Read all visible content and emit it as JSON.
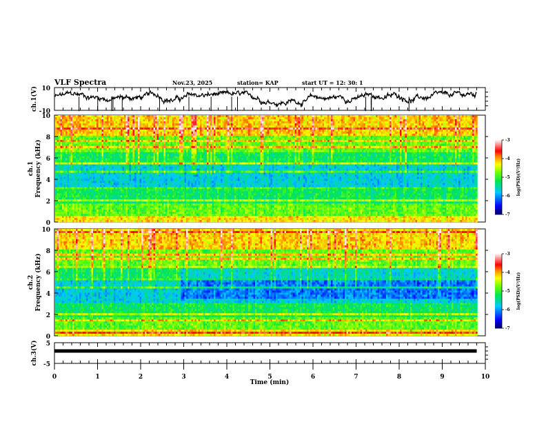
{
  "header": {
    "title": "VLF Spectra",
    "date": "Nov.23, 2025",
    "station": "station= KAP",
    "start": "start  UT =   12: 30: 1"
  },
  "chart_data": [
    {
      "type": "line",
      "name": "ch1-waveform",
      "ylabel": "ch.1(V)",
      "ylim": [
        -10,
        10
      ],
      "yticks": [
        "10",
        "-10"
      ],
      "xlim": [
        0,
        10
      ],
      "x_end": 9.8,
      "series_color": "#000000"
    },
    {
      "type": "heatmap",
      "name": "ch1-spectrogram",
      "ylabel_line1": "ch.1",
      "ylabel_line2": "Frequency (kHz)",
      "ylim": [
        0,
        10
      ],
      "yticks": [
        "0",
        "2",
        "4",
        "6",
        "8",
        "10"
      ],
      "xlim": [
        0,
        10
      ],
      "x_end": 9.8,
      "colorbar": {
        "label": "log(PSD)(V²/Hz)",
        "ticks": [
          "-3",
          "-4",
          "-5",
          "-6",
          "-7"
        ],
        "range": [
          -7,
          -3
        ]
      }
    },
    {
      "type": "heatmap",
      "name": "ch2-spectrogram",
      "ylabel_line1": "ch.2",
      "ylabel_line2": "Frequency (kHz)",
      "ylim": [
        0,
        10
      ],
      "yticks": [
        "0",
        "2",
        "4",
        "6",
        "8",
        "10"
      ],
      "xlim": [
        0,
        10
      ],
      "x_end": 9.8,
      "colorbar": {
        "label": "log(PSD)(V²/Hz)",
        "ticks": [
          "-3",
          "-4",
          "-5",
          "-6",
          "-7"
        ],
        "range": [
          -7,
          -3
        ]
      }
    },
    {
      "type": "line",
      "name": "ch3-waveform",
      "ylabel": "ch.3(V)",
      "ylim": [
        -5,
        5
      ],
      "yticks": [
        "5",
        "-5"
      ],
      "xlim": [
        0,
        10
      ],
      "x_end": 9.8,
      "level": 1,
      "xlabel": "Time  (min)",
      "xticks": [
        "0",
        "1",
        "2",
        "3",
        "4",
        "5",
        "6",
        "7",
        "8",
        "9",
        "10"
      ]
    }
  ]
}
